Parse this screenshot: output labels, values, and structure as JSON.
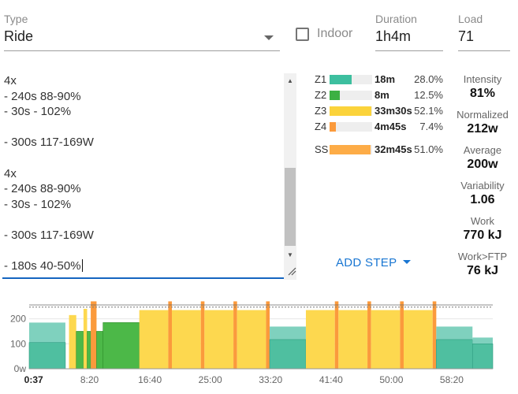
{
  "header": {
    "type_label": "Type",
    "type_value": "Ride",
    "indoor_label": "Indoor",
    "indoor_checked": false,
    "duration_label": "Duration",
    "duration_value": "1h4m",
    "load_label": "Load",
    "load_value": "71"
  },
  "editor": {
    "lines": [
      "4x",
      "- 240s 88-90%",
      "- 30s - 102%",
      "",
      "- 300s 117-169W",
      "",
      "4x",
      "- 240s 88-90%",
      "- 30s - 102%",
      "",
      "- 300s 117-169W",
      "",
      "- 180s 40-50%"
    ]
  },
  "zones": [
    {
      "name": "Z1",
      "time": "18m",
      "pct": "28.0%",
      "fraction": 0.28,
      "color": "#3dbf9f"
    },
    {
      "name": "Z2",
      "time": "8m",
      "pct": "12.5%",
      "fraction": 0.125,
      "color": "#3cb043"
    },
    {
      "name": "Z3",
      "time": "33m30s",
      "pct": "52.1%",
      "fraction": 0.521,
      "color": "#fbd33b"
    },
    {
      "name": "Z4",
      "time": "4m45s",
      "pct": "7.4%",
      "fraction": 0.074,
      "color": "#fb9a3c"
    }
  ],
  "sweet_spot": {
    "name": "SS",
    "time": "32m45s",
    "pct": "51.0%",
    "fraction": 0.51,
    "color": "#fdac47"
  },
  "stats": [
    {
      "label": "Intensity",
      "value": "81%"
    },
    {
      "label": "Normalized",
      "value": "212w"
    },
    {
      "label": "Average",
      "value": "200w"
    },
    {
      "label": "Variability",
      "value": "1.06"
    },
    {
      "label": "Work",
      "value": "770 kJ"
    },
    {
      "label": "Work>FTP",
      "value": "76 kJ"
    }
  ],
  "add_step_label": "ADD STEP",
  "chart_data": {
    "type": "bar",
    "y_tick_labels": [
      "200",
      "100",
      "0w"
    ],
    "y_ticks": [
      200,
      100,
      0
    ],
    "x_tick_labels": [
      "0:37",
      "8:20",
      "16:40",
      "25:00",
      "33:20",
      "41:40",
      "50:00",
      "58:20"
    ],
    "x_ticks_min": [
      0.62,
      8.33,
      16.67,
      25,
      33.33,
      41.67,
      50,
      58.33
    ],
    "ylim": [
      0,
      265
    ],
    "xlim": [
      0,
      64
    ],
    "ftp_watts": 247,
    "zone_colors": {
      "z1": "#7fd1be",
      "z1_dark": "#4fbfa0",
      "z2": "#4cb848",
      "z3": "#fdd84f",
      "z4": "#fb9a3c"
    },
    "segments": [
      {
        "start": 0.0,
        "end": 5.0,
        "low": 105,
        "high": 185,
        "zone": "z1"
      },
      {
        "start": 5.0,
        "end": 5.5,
        "low": 0,
        "high": 0,
        "zone": "z1"
      },
      {
        "start": 5.5,
        "end": 6.5,
        "low": 215,
        "high": 215,
        "zone": "z3"
      },
      {
        "start": 6.5,
        "end": 7.5,
        "low": 150,
        "high": 150,
        "zone": "z2"
      },
      {
        "start": 7.5,
        "end": 8.0,
        "low": 240,
        "high": 240,
        "zone": "z3"
      },
      {
        "start": 8.0,
        "end": 8.5,
        "low": 150,
        "high": 150,
        "zone": "z2"
      },
      {
        "start": 8.5,
        "end": 9.3,
        "low": 270,
        "high": 270,
        "zone": "z4"
      },
      {
        "start": 9.3,
        "end": 10.2,
        "low": 150,
        "high": 150,
        "zone": "z2"
      },
      {
        "start": 10.2,
        "end": 15.2,
        "low": 185,
        "high": 185,
        "zone": "z2"
      },
      {
        "start": 15.2,
        "end": 19.2,
        "low": 235,
        "high": 235,
        "zone": "z3"
      },
      {
        "start": 19.2,
        "end": 19.7,
        "low": 270,
        "high": 270,
        "zone": "z4"
      },
      {
        "start": 19.7,
        "end": 23.7,
        "low": 235,
        "high": 235,
        "zone": "z3"
      },
      {
        "start": 23.7,
        "end": 24.2,
        "low": 270,
        "high": 270,
        "zone": "z4"
      },
      {
        "start": 24.2,
        "end": 28.2,
        "low": 235,
        "high": 235,
        "zone": "z3"
      },
      {
        "start": 28.2,
        "end": 28.7,
        "low": 270,
        "high": 270,
        "zone": "z4"
      },
      {
        "start": 28.7,
        "end": 32.7,
        "low": 235,
        "high": 235,
        "zone": "z3"
      },
      {
        "start": 32.7,
        "end": 33.2,
        "low": 270,
        "high": 270,
        "zone": "z4"
      },
      {
        "start": 33.2,
        "end": 38.2,
        "low": 117,
        "high": 169,
        "zone": "z1"
      },
      {
        "start": 38.2,
        "end": 42.2,
        "low": 235,
        "high": 235,
        "zone": "z3"
      },
      {
        "start": 42.2,
        "end": 42.7,
        "low": 270,
        "high": 270,
        "zone": "z4"
      },
      {
        "start": 42.7,
        "end": 46.7,
        "low": 235,
        "high": 235,
        "zone": "z3"
      },
      {
        "start": 46.7,
        "end": 47.2,
        "low": 270,
        "high": 270,
        "zone": "z4"
      },
      {
        "start": 47.2,
        "end": 51.2,
        "low": 235,
        "high": 235,
        "zone": "z3"
      },
      {
        "start": 51.2,
        "end": 51.7,
        "low": 270,
        "high": 270,
        "zone": "z4"
      },
      {
        "start": 51.7,
        "end": 55.7,
        "low": 235,
        "high": 235,
        "zone": "z3"
      },
      {
        "start": 55.7,
        "end": 56.2,
        "low": 270,
        "high": 270,
        "zone": "z4"
      },
      {
        "start": 56.2,
        "end": 61.2,
        "low": 117,
        "high": 169,
        "zone": "z1"
      },
      {
        "start": 61.2,
        "end": 64.0,
        "low": 100,
        "high": 125,
        "zone": "z1"
      }
    ]
  }
}
